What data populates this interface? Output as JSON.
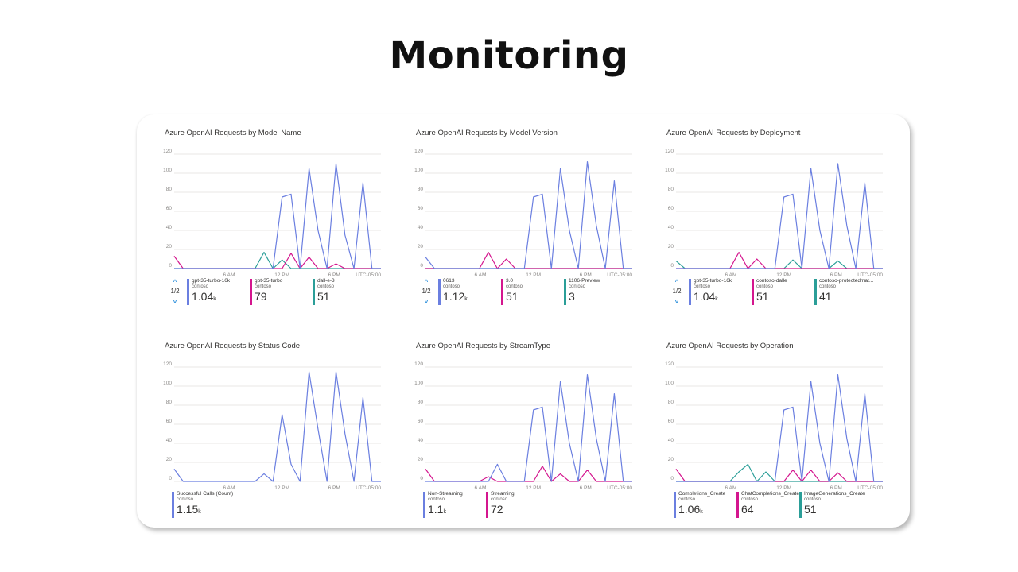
{
  "page": {
    "title": "Monitoring"
  },
  "colors": {
    "blue": "#6b7fe0",
    "magenta": "#d4168e",
    "teal": "#2b9e98",
    "grid": "#e1dfdd"
  },
  "chart_data": [
    {
      "type": "line",
      "title": "Azure OpenAI Requests by Model Name",
      "ylim": [
        0,
        120
      ],
      "yticks": [
        0,
        20,
        40,
        60,
        80,
        100,
        120
      ],
      "xticks": [
        "6 AM",
        "12 PM",
        "6 PM",
        "UTC-05:00"
      ],
      "x": [
        0,
        1,
        2,
        3,
        4,
        5,
        6,
        7,
        8,
        9,
        10,
        11,
        12,
        13,
        14,
        15,
        16,
        17,
        18,
        19,
        20,
        21,
        22,
        23
      ],
      "pager": "1/2",
      "series": [
        {
          "name": "gpt-35-turbo-16k",
          "sub": "contoso",
          "value": "1.04",
          "unit": "k",
          "color": "#6b7fe0",
          "values": [
            0,
            0,
            0,
            0,
            0,
            0,
            0,
            0,
            0,
            0,
            0,
            0,
            75,
            78,
            0,
            105,
            40,
            0,
            110,
            35,
            0,
            90,
            0,
            0
          ]
        },
        {
          "name": "gpt-35-turbo",
          "sub": "contoso",
          "value": "79",
          "unit": "",
          "color": "#d4168e",
          "values": [
            13,
            0,
            0,
            0,
            0,
            0,
            0,
            0,
            0,
            0,
            0,
            0,
            0,
            16,
            0,
            12,
            0,
            0,
            5,
            0,
            0,
            0,
            0,
            0
          ]
        },
        {
          "name": "dall-e-3",
          "sub": "contoso",
          "value": "51",
          "unit": "",
          "color": "#2b9e98",
          "values": [
            0,
            0,
            0,
            0,
            0,
            0,
            0,
            0,
            0,
            0,
            17,
            0,
            9,
            0,
            0,
            0,
            0,
            0,
            0,
            0,
            0,
            0,
            0,
            0
          ]
        }
      ]
    },
    {
      "type": "line",
      "title": "Azure OpenAI Requests by Model Version",
      "ylim": [
        0,
        120
      ],
      "yticks": [
        0,
        20,
        40,
        60,
        80,
        100,
        120
      ],
      "xticks": [
        "6 AM",
        "12 PM",
        "6 PM",
        "UTC-05:00"
      ],
      "x": [
        0,
        1,
        2,
        3,
        4,
        5,
        6,
        7,
        8,
        9,
        10,
        11,
        12,
        13,
        14,
        15,
        16,
        17,
        18,
        19,
        20,
        21,
        22,
        23
      ],
      "pager": "1/2",
      "series": [
        {
          "name": "0613",
          "sub": "contoso",
          "value": "1.12",
          "unit": "k",
          "color": "#6b7fe0",
          "values": [
            12,
            0,
            0,
            0,
            0,
            0,
            0,
            0,
            0,
            0,
            0,
            0,
            75,
            78,
            0,
            105,
            40,
            0,
            112,
            45,
            0,
            92,
            0,
            0
          ]
        },
        {
          "name": "3.0",
          "sub": "contoso",
          "value": "51",
          "unit": "",
          "color": "#d4168e",
          "values": [
            0,
            0,
            0,
            0,
            0,
            0,
            0,
            17,
            0,
            10,
            0,
            0,
            0,
            0,
            0,
            0,
            0,
            0,
            0,
            0,
            0,
            0,
            0,
            0
          ]
        },
        {
          "name": "1106-Preview",
          "sub": "contoso",
          "value": "3",
          "unit": "",
          "color": "#2b9e98",
          "values": [
            0,
            0,
            0,
            0,
            0,
            0,
            0,
            0,
            0,
            0,
            0,
            0,
            0,
            0,
            0,
            0,
            0,
            0,
            0,
            0,
            0,
            0,
            0,
            0
          ]
        }
      ]
    },
    {
      "type": "line",
      "title": "Azure OpenAI Requests by Deployment",
      "ylim": [
        0,
        120
      ],
      "yticks": [
        0,
        20,
        40,
        60,
        80,
        100,
        120
      ],
      "xticks": [
        "6 AM",
        "12 PM",
        "6 PM",
        "UTC-05:00"
      ],
      "x": [
        0,
        1,
        2,
        3,
        4,
        5,
        6,
        7,
        8,
        9,
        10,
        11,
        12,
        13,
        14,
        15,
        16,
        17,
        18,
        19,
        20,
        21,
        22,
        23
      ],
      "pager": "1/2",
      "series": [
        {
          "name": "gpt-35-turbo-16k",
          "sub": "contoso",
          "value": "1.04",
          "unit": "k",
          "color": "#6b7fe0",
          "values": [
            0,
            0,
            0,
            0,
            0,
            0,
            0,
            0,
            0,
            0,
            0,
            0,
            75,
            78,
            0,
            105,
            40,
            0,
            110,
            45,
            0,
            90,
            0,
            0
          ]
        },
        {
          "name": "contoso-dalle",
          "sub": "contoso",
          "value": "51",
          "unit": "",
          "color": "#d4168e",
          "values": [
            0,
            0,
            0,
            0,
            0,
            0,
            0,
            17,
            0,
            10,
            0,
            0,
            0,
            0,
            0,
            0,
            0,
            0,
            0,
            0,
            0,
            0,
            0,
            0
          ]
        },
        {
          "name": "contoso-protectedmat...",
          "sub": "contoso",
          "value": "41",
          "unit": "",
          "color": "#2b9e98",
          "values": [
            8,
            0,
            0,
            0,
            0,
            0,
            0,
            0,
            0,
            0,
            0,
            0,
            0,
            9,
            0,
            0,
            0,
            0,
            8,
            0,
            0,
            0,
            0,
            0
          ]
        }
      ]
    },
    {
      "type": "line",
      "title": "Azure OpenAI Requests by Status Code",
      "ylim": [
        0,
        120
      ],
      "yticks": [
        0,
        20,
        40,
        60,
        80,
        100,
        120
      ],
      "xticks": [
        "6 AM",
        "12 PM",
        "6 PM",
        "UTC-05:00"
      ],
      "x": [
        0,
        1,
        2,
        3,
        4,
        5,
        6,
        7,
        8,
        9,
        10,
        11,
        12,
        13,
        14,
        15,
        16,
        17,
        18,
        19,
        20,
        21,
        22,
        23
      ],
      "pager": "",
      "series": [
        {
          "name": "Successful Calls (Count)",
          "sub": "contoso",
          "value": "1.15",
          "unit": "k",
          "color": "#6b7fe0",
          "values": [
            13,
            0,
            0,
            0,
            0,
            0,
            0,
            0,
            0,
            0,
            8,
            0,
            70,
            18,
            0,
            115,
            55,
            0,
            115,
            50,
            0,
            88,
            0,
            0
          ]
        }
      ]
    },
    {
      "type": "line",
      "title": "Azure OpenAI Requests by StreamType",
      "ylim": [
        0,
        120
      ],
      "yticks": [
        0,
        20,
        40,
        60,
        80,
        100,
        120
      ],
      "xticks": [
        "6 AM",
        "12 PM",
        "6 PM",
        "UTC-05:00"
      ],
      "x": [
        0,
        1,
        2,
        3,
        4,
        5,
        6,
        7,
        8,
        9,
        10,
        11,
        12,
        13,
        14,
        15,
        16,
        17,
        18,
        19,
        20,
        21,
        22,
        23
      ],
      "pager": "",
      "series": [
        {
          "name": "Non-Streaming",
          "sub": "contoso",
          "value": "1.1",
          "unit": "k",
          "color": "#6b7fe0",
          "values": [
            0,
            0,
            0,
            0,
            0,
            0,
            0,
            0,
            18,
            0,
            0,
            0,
            75,
            78,
            0,
            105,
            40,
            0,
            112,
            45,
            0,
            92,
            0,
            0
          ]
        },
        {
          "name": "Streaming",
          "sub": "contoso",
          "value": "72",
          "unit": "",
          "color": "#d4168e",
          "values": [
            13,
            0,
            0,
            0,
            0,
            0,
            0,
            5,
            0,
            0,
            0,
            0,
            0,
            16,
            0,
            8,
            0,
            0,
            12,
            0,
            0,
            0,
            0,
            0
          ]
        }
      ]
    },
    {
      "type": "line",
      "title": "Azure OpenAI Requests by Operation",
      "ylim": [
        0,
        120
      ],
      "yticks": [
        0,
        20,
        40,
        60,
        80,
        100,
        120
      ],
      "xticks": [
        "6 AM",
        "12 PM",
        "6 PM",
        "UTC-05:00"
      ],
      "x": [
        0,
        1,
        2,
        3,
        4,
        5,
        6,
        7,
        8,
        9,
        10,
        11,
        12,
        13,
        14,
        15,
        16,
        17,
        18,
        19,
        20,
        21,
        22,
        23
      ],
      "pager": "",
      "series": [
        {
          "name": "Completions_Create",
          "sub": "contoso",
          "value": "1.06",
          "unit": "k",
          "color": "#6b7fe0",
          "values": [
            0,
            0,
            0,
            0,
            0,
            0,
            0,
            0,
            0,
            0,
            0,
            0,
            75,
            78,
            0,
            105,
            40,
            0,
            112,
            45,
            0,
            92,
            0,
            0
          ]
        },
        {
          "name": "ChatCompletions_Create",
          "sub": "contoso",
          "value": "64",
          "unit": "",
          "color": "#d4168e",
          "values": [
            13,
            0,
            0,
            0,
            0,
            0,
            0,
            0,
            0,
            0,
            0,
            0,
            0,
            12,
            0,
            12,
            0,
            0,
            9,
            0,
            0,
            0,
            0,
            0
          ]
        },
        {
          "name": "ImageGenerations_Create",
          "sub": "contoso",
          "value": "51",
          "unit": "",
          "color": "#2b9e98",
          "values": [
            0,
            0,
            0,
            0,
            0,
            0,
            0,
            10,
            18,
            0,
            10,
            0,
            0,
            0,
            0,
            0,
            0,
            0,
            0,
            0,
            0,
            0,
            0,
            0
          ]
        }
      ]
    }
  ]
}
